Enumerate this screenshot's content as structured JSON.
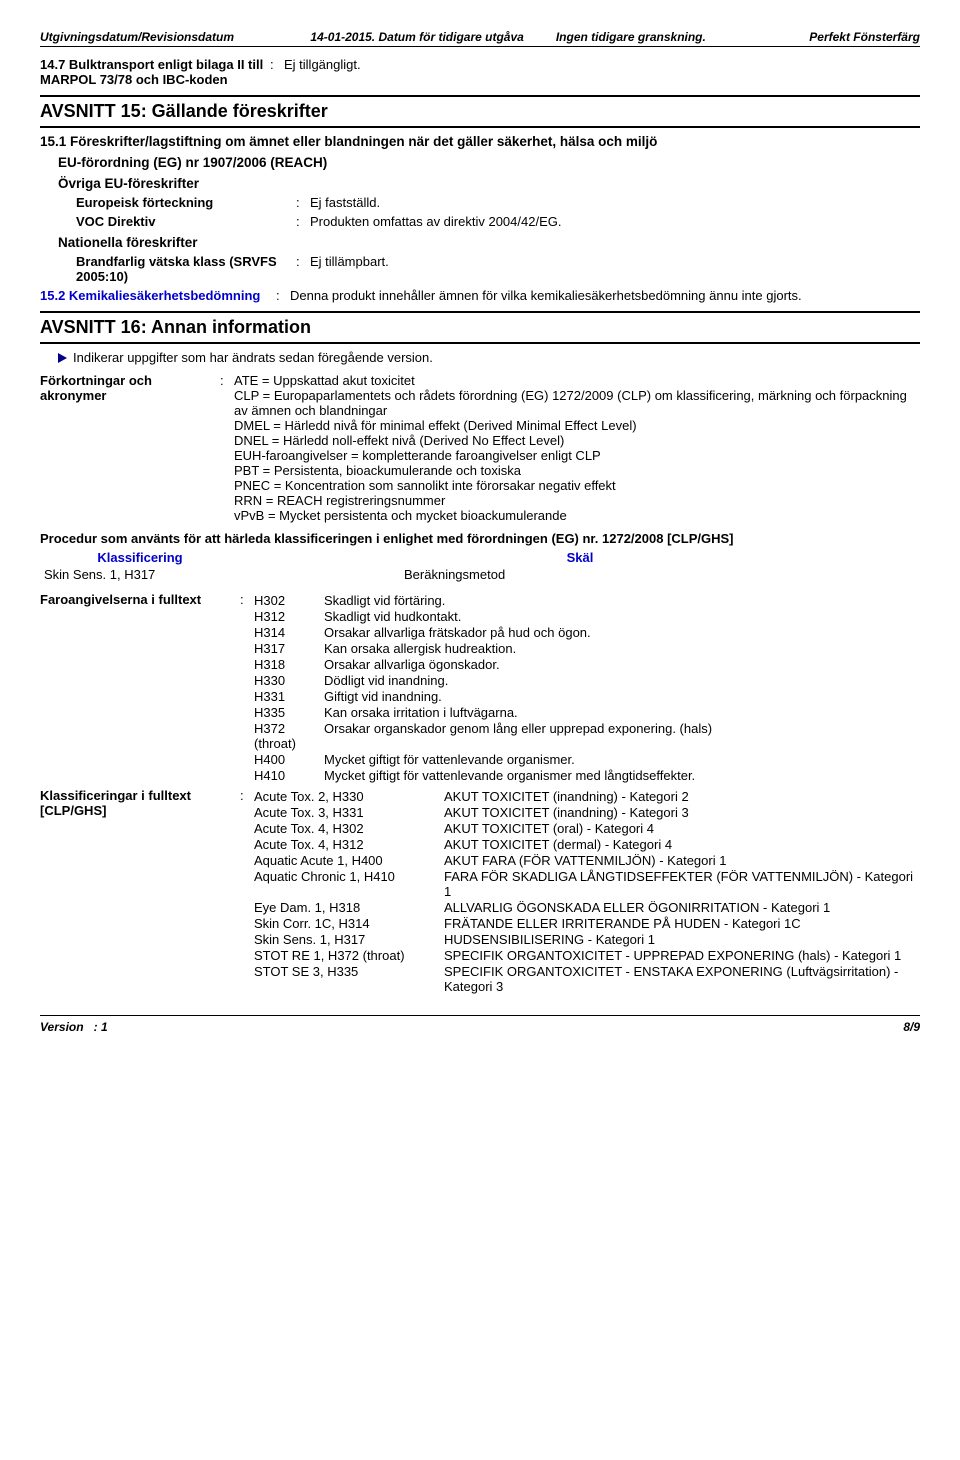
{
  "header": {
    "col1_label": "Utgivningsdatum/Revisionsdatum",
    "col2": "14-01-2015. Datum för tidigare utgåva",
    "col3": "Ingen tidigare granskning.",
    "col4": "Perfekt Fönsterfärg"
  },
  "sec14_7": {
    "label": "14.7 Bulktransport enligt bilaga II till MARPOL 73/78 och IBC-koden",
    "value": "Ej tillgängligt."
  },
  "sec15_title": "AVSNITT 15: Gällande föreskrifter",
  "sec15_1_heading": "15.1 Föreskrifter/lagstiftning om ämnet eller blandningen när det gäller säkerhet, hälsa och miljö",
  "eu_forord": "EU-förordning (EG) nr 1907/2006 (REACH)",
  "ovriga_eu": "Övriga EU-föreskrifter",
  "europeisk": {
    "label": "Europeisk förteckning",
    "value": "Ej fastställd."
  },
  "voc": {
    "label": "VOC Direktiv",
    "value": "Produkten omfattas av direktiv 2004/42/EG."
  },
  "nationella": "Nationella föreskrifter",
  "brandfarlig": {
    "label": "Brandfarlig vätska klass (SRVFS 2005:10)",
    "value": "Ej tillämpbart."
  },
  "sec15_2": {
    "label": "15.2 Kemikaliesäkerhetsbedömning",
    "value": "Denna produkt innehåller ämnen för vilka kemikaliesäkerhetsbedömning ännu inte gjorts."
  },
  "sec16_title": "AVSNITT 16: Annan information",
  "indicator_text": "Indikerar uppgifter som har ändrats sedan föregående version.",
  "forkort": {
    "label": "Förkortningar och akronymer",
    "lines": [
      "ATE = Uppskattad akut toxicitet",
      "CLP = Europaparlamentets och rådets förordning (EG) 1272/2009 (CLP) om klassificering, märkning och förpackning av ämnen och blandningar",
      "DMEL = Härledd nivå för minimal effekt (Derived Minimal Effect Level)",
      "DNEL = Härledd noll-effekt nivå (Derived No Effect Level)",
      "EUH-faroangivelser = kompletterande faroangivelser enligt CLP",
      "PBT = Persistenta, bioackumulerande och toxiska",
      "PNEC = Koncentration som sannolikt inte förorsakar negativ effekt",
      "RRN = REACH registreringsnummer",
      "vPvB = Mycket persistenta och mycket bioackumulerande"
    ]
  },
  "proc_heading": "Procedur som använts för att härleda klassificeringen i enlighet med förordningen (EG) nr. 1272/2008 [CLP/GHS]",
  "class_head1": "Klassificering",
  "class_head2": "Skäl",
  "class_row1": "Skin Sens. 1, H317",
  "class_row1_desc": "Beräkningsmetod",
  "faro": {
    "label": "Faroangivelserna i fulltext",
    "codes": [
      [
        "H302",
        "Skadligt vid förtäring."
      ],
      [
        "H312",
        "Skadligt vid hudkontakt."
      ],
      [
        "H314",
        "Orsakar allvarliga frätskador på hud och ögon."
      ],
      [
        "H317",
        "Kan orsaka allergisk hudreaktion."
      ],
      [
        "H318",
        "Orsakar allvarliga ögonskador."
      ],
      [
        "H330",
        "Dödligt vid inandning."
      ],
      [
        "H331",
        "Giftigt vid inandning."
      ],
      [
        "H335",
        "Kan orsaka irritation i luftvägarna."
      ],
      [
        "H372 (throat)",
        "Orsakar organskador genom lång eller upprepad exponering. (hals)"
      ],
      [
        "H400",
        "Mycket giftigt för vattenlevande organismer."
      ],
      [
        "H410",
        "Mycket giftigt för vattenlevande organismer med långtidseffekter."
      ]
    ]
  },
  "klass": {
    "label": "Klassificeringar i fulltext [CLP/GHS]",
    "rows": [
      [
        "Acute Tox. 2, H330",
        "AKUT TOXICITET (inandning) - Kategori 2"
      ],
      [
        "Acute Tox. 3, H331",
        "AKUT TOXICITET (inandning) - Kategori 3"
      ],
      [
        "Acute Tox. 4, H302",
        "AKUT TOXICITET (oral) - Kategori 4"
      ],
      [
        "Acute Tox. 4, H312",
        "AKUT TOXICITET (dermal) - Kategori 4"
      ],
      [
        "Aquatic Acute 1, H400",
        "AKUT FARA (FÖR VATTENMILJÖN) - Kategori 1"
      ],
      [
        "Aquatic Chronic 1, H410",
        "FARA FÖR SKADLIGA LÅNGTIDSEFFEKTER (FÖR VATTENMILJÖN) - Kategori 1"
      ],
      [
        "Eye Dam. 1, H318",
        "ALLVARLIG ÖGONSKADA ELLER ÖGONIRRITATION - Kategori 1"
      ],
      [
        "Skin Corr. 1C, H314",
        "FRÄTANDE ELLER IRRITERANDE PÅ HUDEN - Kategori 1C"
      ],
      [
        "Skin Sens. 1, H317",
        "HUDSENSIBILISERING - Kategori 1"
      ],
      [
        "STOT RE 1, H372 (throat)",
        "SPECIFIK ORGANTOXICITET - UPPREPAD EXPONERING (hals) - Kategori 1"
      ],
      [
        "STOT SE 3, H335",
        "SPECIFIK ORGANTOXICITET - ENSTAKA EXPONERING (Luftvägsirritation) - Kategori 3"
      ]
    ]
  },
  "footer": {
    "version_label": "Version",
    "version_colon": ":",
    "version_num": "1",
    "page": "8/9"
  }
}
